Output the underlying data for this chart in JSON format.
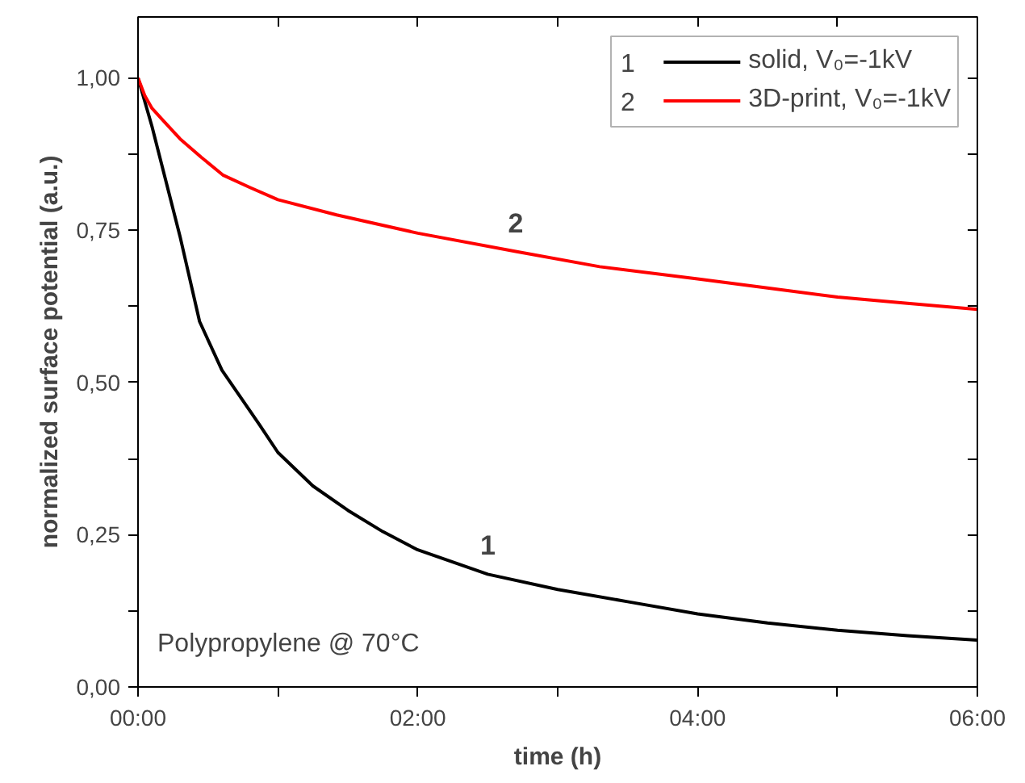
{
  "chart_data": {
    "type": "line",
    "xlabel": "time (h)",
    "ylabel": "normalized surface potential (a.u.)",
    "xlim": [
      0,
      6
    ],
    "ylim": [
      0,
      1.1
    ],
    "xticks": [
      {
        "value": 0,
        "label": "00:00"
      },
      {
        "value": 1,
        "label": null
      },
      {
        "value": 2,
        "label": "02:00"
      },
      {
        "value": 3,
        "label": null
      },
      {
        "value": 4,
        "label": "04:00"
      },
      {
        "value": 5,
        "label": null
      },
      {
        "value": 6,
        "label": "06:00"
      }
    ],
    "yticks": [
      {
        "value": 0,
        "label": "0,00"
      },
      {
        "value": 0.125,
        "label": null
      },
      {
        "value": 0.25,
        "label": "0,25"
      },
      {
        "value": 0.375,
        "label": null
      },
      {
        "value": 0.5,
        "label": "0,50"
      },
      {
        "value": 0.625,
        "label": null
      },
      {
        "value": 0.75,
        "label": "0,75"
      },
      {
        "value": 0.875,
        "label": null
      },
      {
        "value": 1.0,
        "label": "1,00"
      }
    ],
    "grid": false,
    "legend": "top right",
    "marker": "none",
    "line_style": "solid",
    "x": [
      0,
      0.1,
      0.2,
      0.3,
      0.44,
      0.6,
      0.87,
      1.0,
      1.25,
      1.5,
      1.75,
      2.0,
      2.5,
      3.0,
      3.5,
      4.0,
      4.5,
      5.0,
      5.5,
      6.0
    ],
    "series": [
      {
        "name": "solid, V₀=-1kV",
        "color": "#000000",
        "values": [
          1.0,
          0.92,
          0.83,
          0.74,
          0.6,
          0.52,
          0.43,
          0.385,
          0.33,
          0.29,
          0.255,
          0.225,
          0.185,
          0.16,
          0.14,
          0.12,
          0.105,
          0.093,
          0.084,
          0.077
        ]
      },
      {
        "name": "3D-print, V₀=-1kV",
        "color": "#ff0000",
        "x": [
          0,
          0.05,
          0.1,
          0.18,
          0.3,
          0.45,
          0.61,
          0.8,
          1.0,
          1.42,
          2.0,
          2.7,
          3.3,
          4.0,
          4.5,
          5.0,
          5.5,
          6.0
        ],
        "values": [
          1.0,
          0.97,
          0.95,
          0.93,
          0.9,
          0.87,
          0.84,
          0.82,
          0.8,
          0.775,
          0.745,
          0.715,
          0.69,
          0.67,
          0.655,
          0.64,
          0.63,
          0.62
        ]
      }
    ],
    "annotations": [
      "1",
      "2",
      "Polypropylene @ 70°C"
    ]
  }
}
